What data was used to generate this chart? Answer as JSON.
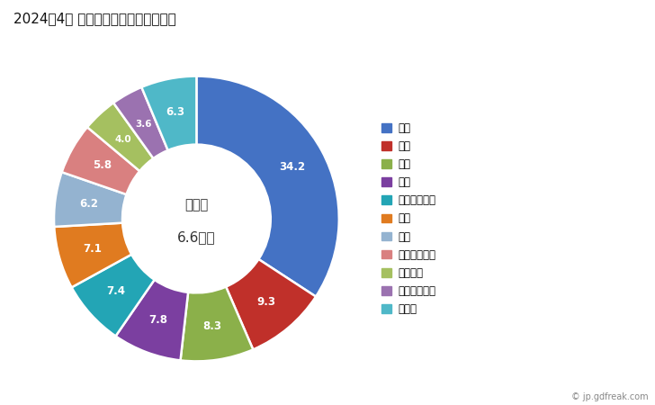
{
  "title": "2024年4月 輸出相手国のシェア（％）",
  "center_label_line1": "総　額",
  "center_label_line2": "6.6億円",
  "categories": [
    "米国",
    "中国",
    "台湾",
    "タイ",
    "カザフスタン",
    "韓国",
    "香港",
    "インドネシア",
    "ベトナム",
    "シンガポール",
    "その他"
  ],
  "values": [
    34.2,
    9.3,
    8.3,
    7.8,
    7.4,
    7.1,
    6.2,
    5.8,
    4.0,
    3.6,
    6.3
  ],
  "colors": [
    "#4472C4",
    "#C0302A",
    "#8BB04A",
    "#7B3FA0",
    "#23A5B5",
    "#E07B20",
    "#94B3D0",
    "#D98080",
    "#A5C060",
    "#9B72B0",
    "#4FB8C8"
  ],
  "wedge_labels": [
    "34.2",
    "9.3",
    "8.3",
    "7.8",
    "7.4",
    "7.1",
    "6.2",
    "5.8",
    "4.0",
    "3.6",
    "6.3"
  ],
  "copyright": "© jp.gdfreak.com",
  "background_color": "#ffffff",
  "label_color": "white",
  "donut_width": 0.48,
  "label_r": 0.76
}
